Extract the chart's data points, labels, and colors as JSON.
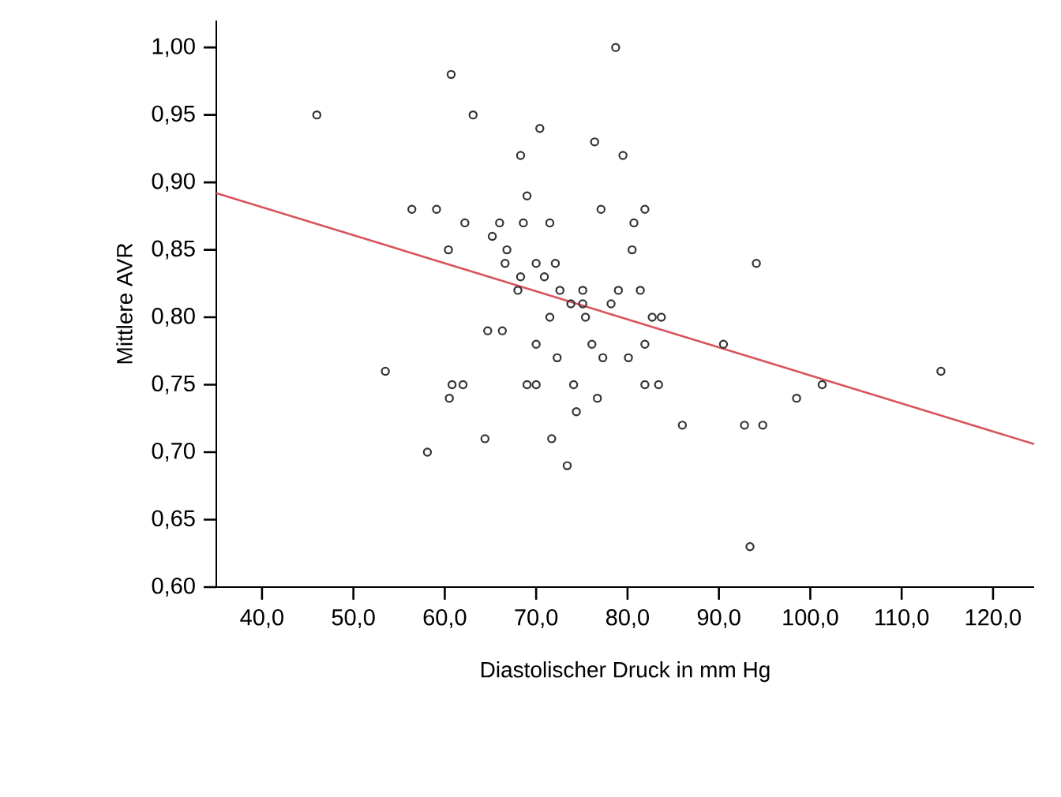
{
  "chart_data": {
    "type": "scatter",
    "xlabel": "Diastolischer Druck in mm Hg",
    "ylabel": "Mittlere AVR",
    "marker": "circle",
    "grid": false,
    "xlim": [
      35,
      124.5
    ],
    "ylim": [
      0.6,
      1.02
    ],
    "xticks": [
      {
        "value": 40,
        "label": "40,0"
      },
      {
        "value": 50,
        "label": "50,0"
      },
      {
        "value": 60,
        "label": "60,0"
      },
      {
        "value": 70,
        "label": "70,0"
      },
      {
        "value": 80,
        "label": "80,0"
      },
      {
        "value": 90,
        "label": "90,0"
      },
      {
        "value": 100,
        "label": "100,0"
      },
      {
        "value": 110,
        "label": "110,0"
      },
      {
        "value": 120,
        "label": "120,0"
      }
    ],
    "yticks": [
      {
        "value": 0.6,
        "label": "0,60"
      },
      {
        "value": 0.65,
        "label": "0,65"
      },
      {
        "value": 0.7,
        "label": "0,70"
      },
      {
        "value": 0.75,
        "label": "0,75"
      },
      {
        "value": 0.8,
        "label": "0,80"
      },
      {
        "value": 0.85,
        "label": "0,85"
      },
      {
        "value": 0.9,
        "label": "0,90"
      },
      {
        "value": 0.95,
        "label": "0,95"
      },
      {
        "value": 1.0,
        "label": "1,00"
      }
    ],
    "series": [
      {
        "color": "#333333",
        "x": [
          46.0,
          60.7,
          63.1,
          70.4,
          76.4,
          79.5,
          78.7,
          68.3,
          69.0,
          56.4,
          59.1,
          77.1,
          62.2,
          66.0,
          68.6,
          71.5,
          65.2,
          66.8,
          60.4,
          66.6,
          70.0,
          72.1,
          68.3,
          70.9,
          68.0,
          72.6,
          75.1,
          79.0,
          73.8,
          75.1,
          71.5,
          75.4,
          64.7,
          66.3,
          70.0,
          72.3,
          76.1,
          77.3,
          80.1,
          53.5,
          60.8,
          62.0,
          60.5,
          69.0,
          70.0,
          74.1,
          76.7,
          74.4,
          64.4,
          71.7,
          58.1,
          73.4,
          81.9,
          80.7,
          80.5,
          94.1,
          81.4,
          78.2,
          82.7,
          83.7,
          90.5,
          81.9,
          81.9,
          83.4,
          86.0,
          92.8,
          94.8,
          98.5,
          101.3,
          114.3,
          93.4
        ],
        "values": [
          0.95,
          0.98,
          0.95,
          0.94,
          0.93,
          0.92,
          1.0,
          0.92,
          0.89,
          0.88,
          0.88,
          0.88,
          0.87,
          0.87,
          0.87,
          0.87,
          0.86,
          0.85,
          0.85,
          0.84,
          0.84,
          0.84,
          0.83,
          0.83,
          0.82,
          0.82,
          0.82,
          0.82,
          0.81,
          0.81,
          0.8,
          0.8,
          0.79,
          0.79,
          0.78,
          0.77,
          0.78,
          0.77,
          0.77,
          0.76,
          0.75,
          0.75,
          0.74,
          0.75,
          0.75,
          0.75,
          0.74,
          0.73,
          0.71,
          0.71,
          0.7,
          0.69,
          0.88,
          0.87,
          0.85,
          0.84,
          0.82,
          0.81,
          0.8,
          0.8,
          0.78,
          0.78,
          0.75,
          0.75,
          0.72,
          0.72,
          0.72,
          0.74,
          0.75,
          0.76,
          0.63
        ]
      },
      {
        "type": "line",
        "color": "#d9545c",
        "marker": "none",
        "x": [
          35,
          124.5
        ],
        "values": [
          0.892,
          0.706
        ]
      }
    ]
  }
}
